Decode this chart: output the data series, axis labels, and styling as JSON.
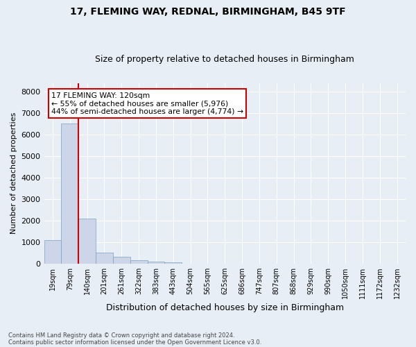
{
  "title1": "17, FLEMING WAY, REDNAL, BIRMINGHAM, B45 9TF",
  "title2": "Size of property relative to detached houses in Birmingham",
  "xlabel": "Distribution of detached houses by size in Birmingham",
  "ylabel": "Number of detached properties",
  "footnote1": "Contains HM Land Registry data © Crown copyright and database right 2024.",
  "footnote2": "Contains public sector information licensed under the Open Government Licence v3.0.",
  "bin_labels": [
    "19sqm",
    "79sqm",
    "140sqm",
    "201sqm",
    "261sqm",
    "322sqm",
    "383sqm",
    "443sqm",
    "504sqm",
    "565sqm",
    "625sqm",
    "686sqm",
    "747sqm",
    "807sqm",
    "868sqm",
    "929sqm",
    "990sqm",
    "1050sqm",
    "1111sqm",
    "1172sqm",
    "1232sqm"
  ],
  "bar_heights": [
    1100,
    6500,
    2100,
    500,
    300,
    150,
    100,
    40,
    0,
    0,
    0,
    0,
    0,
    0,
    0,
    0,
    0,
    0,
    0,
    0,
    0
  ],
  "bar_color": "#ccd6e8",
  "bar_edge_color": "#7aa0c4",
  "property_line_x": 1.5,
  "property_line_color": "#cc0000",
  "annotation_text": "17 FLEMING WAY: 120sqm\n← 55% of detached houses are smaller (5,976)\n44% of semi-detached houses are larger (4,774) →",
  "annotation_box_color": "#ffffff",
  "annotation_box_edge": "#cc0000",
  "ylim": [
    0,
    8400
  ],
  "yticks": [
    0,
    1000,
    2000,
    3000,
    4000,
    5000,
    6000,
    7000,
    8000
  ],
  "background_color": "#e8eef5",
  "plot_background": "#e8eef5",
  "grid_color": "#ffffff",
  "title_fontsize": 10,
  "subtitle_fontsize": 9
}
